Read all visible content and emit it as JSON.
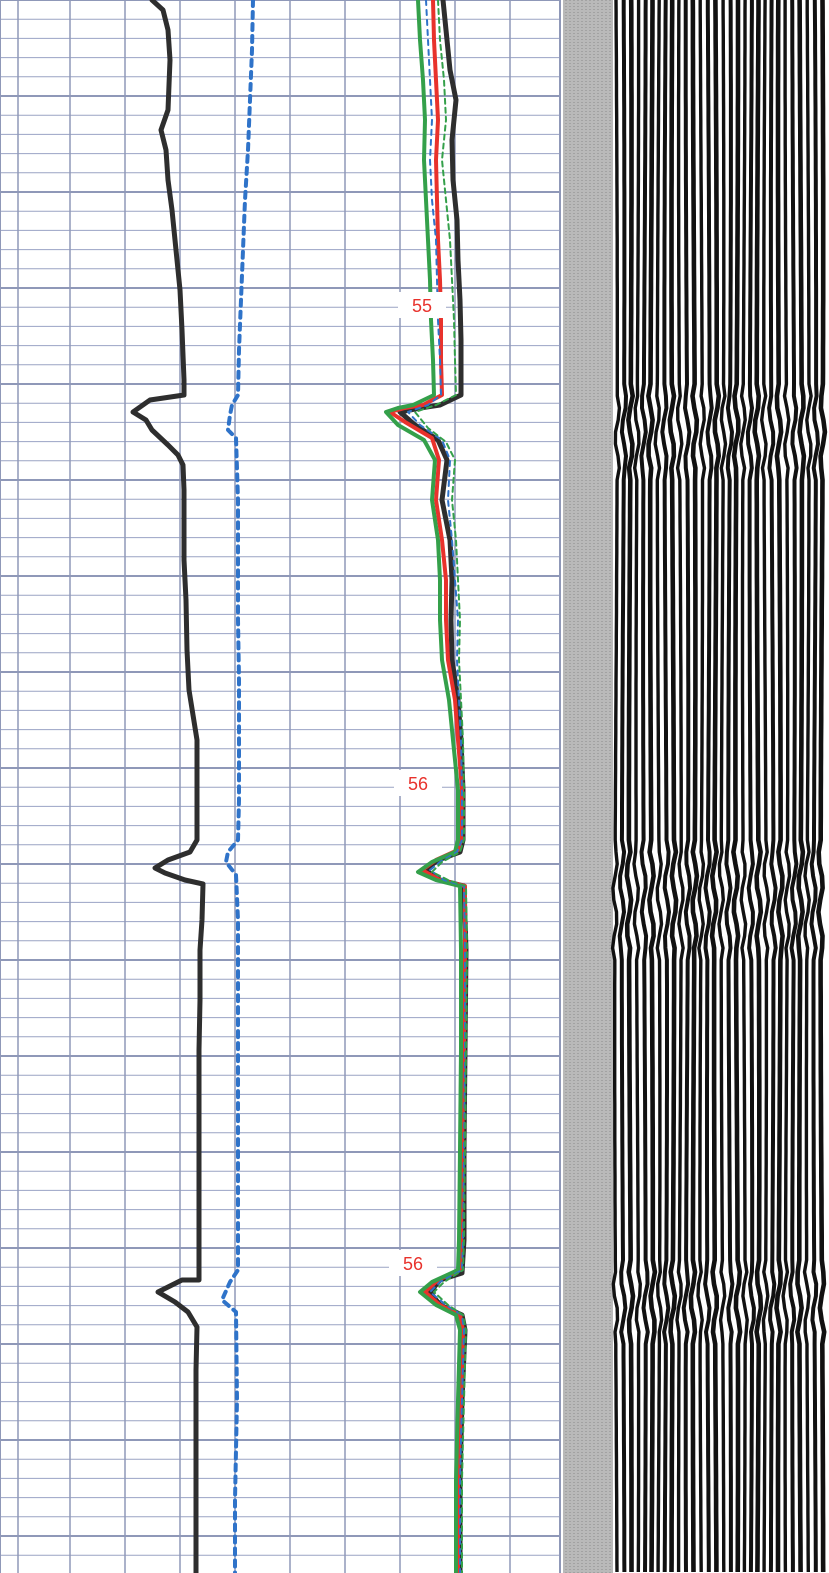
{
  "chart_data": {
    "type": "line",
    "depth_labels": [
      "55",
      "56",
      "56"
    ],
    "colors": {
      "grid_minor": "#9aa3c4",
      "grid_major": "#8f98b8",
      "black_track": "#2e2e2e",
      "blue_track": "#2f73c9",
      "red_track": "#e8322c",
      "green_track": "#34a04a",
      "label_text": "#e8322c",
      "separator": "#b9b9b9"
    },
    "series": [
      {
        "color_key": "black_track",
        "dash": "",
        "width": 5,
        "points": [
          [
            152,
            0
          ],
          [
            163,
            10
          ],
          [
            168,
            30
          ],
          [
            170,
            60
          ],
          [
            168,
            110
          ],
          [
            161,
            130
          ],
          [
            166,
            150
          ],
          [
            168,
            180
          ],
          [
            172,
            210
          ],
          [
            176,
            250
          ],
          [
            180,
            290
          ],
          [
            182,
            330
          ],
          [
            184,
            380
          ],
          [
            184,
            395
          ],
          [
            150,
            400
          ],
          [
            133,
            412
          ],
          [
            146,
            420
          ],
          [
            152,
            430
          ],
          [
            168,
            445
          ],
          [
            178,
            455
          ],
          [
            183,
            465
          ],
          [
            184,
            490
          ],
          [
            184,
            540
          ],
          [
            184,
            560
          ],
          [
            186,
            600
          ],
          [
            187,
            650
          ],
          [
            189,
            690
          ],
          [
            193,
            715
          ],
          [
            197,
            740
          ],
          [
            197,
            790
          ],
          [
            197,
            840
          ],
          [
            190,
            852
          ],
          [
            168,
            860
          ],
          [
            155,
            868
          ],
          [
            165,
            873
          ],
          [
            185,
            880
          ],
          [
            203,
            884
          ],
          [
            202,
            920
          ],
          [
            200,
            950
          ],
          [
            200,
            1000
          ],
          [
            199,
            1050
          ],
          [
            199,
            1100
          ],
          [
            199,
            1150
          ],
          [
            199,
            1200
          ],
          [
            199,
            1240
          ],
          [
            199,
            1280
          ],
          [
            182,
            1280
          ],
          [
            158,
            1292
          ],
          [
            175,
            1302
          ],
          [
            188,
            1312
          ],
          [
            197,
            1327
          ],
          [
            196,
            1370
          ],
          [
            196,
            1420
          ],
          [
            196,
            1470
          ],
          [
            196,
            1520
          ],
          [
            196,
            1573
          ]
        ]
      },
      {
        "color_key": "blue_track",
        "dash": "6,6",
        "width": 4,
        "points": [
          [
            253,
            0
          ],
          [
            252,
            50
          ],
          [
            250,
            100
          ],
          [
            248,
            150
          ],
          [
            245,
            200
          ],
          [
            243,
            250
          ],
          [
            241,
            300
          ],
          [
            239,
            350
          ],
          [
            238,
            395
          ],
          [
            232,
            405
          ],
          [
            230,
            415
          ],
          [
            228,
            430
          ],
          [
            236,
            438
          ],
          [
            238,
            500
          ],
          [
            238,
            560
          ],
          [
            238,
            620
          ],
          [
            239,
            680
          ],
          [
            239,
            740
          ],
          [
            239,
            800
          ],
          [
            238,
            840
          ],
          [
            228,
            852
          ],
          [
            226,
            862
          ],
          [
            236,
            875
          ],
          [
            238,
            920
          ],
          [
            238,
            1000
          ],
          [
            238,
            1100
          ],
          [
            238,
            1200
          ],
          [
            238,
            1270
          ],
          [
            230,
            1282
          ],
          [
            222,
            1300
          ],
          [
            236,
            1312
          ],
          [
            237,
            1400
          ],
          [
            235,
            1500
          ],
          [
            235,
            1573
          ]
        ]
      },
      {
        "color_key": "black_track",
        "dash": "",
        "width": 5,
        "points": [
          [
            443,
            0
          ],
          [
            446,
            30
          ],
          [
            450,
            70
          ],
          [
            456,
            100
          ],
          [
            452,
            140
          ],
          [
            453,
            180
          ],
          [
            457,
            220
          ],
          [
            458,
            260
          ],
          [
            460,
            300
          ],
          [
            461,
            340
          ],
          [
            461,
            395
          ],
          [
            440,
            405
          ],
          [
            420,
            408
          ],
          [
            400,
            412
          ],
          [
            415,
            425
          ],
          [
            438,
            440
          ],
          [
            447,
            460
          ],
          [
            442,
            500
          ],
          [
            450,
            540
          ],
          [
            452,
            580
          ],
          [
            451,
            620
          ],
          [
            452,
            660
          ],
          [
            458,
            700
          ],
          [
            461,
            740
          ],
          [
            463,
            790
          ],
          [
            463,
            840
          ],
          [
            460,
            852
          ],
          [
            438,
            860
          ],
          [
            425,
            870
          ],
          [
            440,
            880
          ],
          [
            464,
            886
          ],
          [
            466,
            950
          ],
          [
            465,
            1050
          ],
          [
            464,
            1150
          ],
          [
            464,
            1240
          ],
          [
            462,
            1273
          ],
          [
            440,
            1280
          ],
          [
            430,
            1292
          ],
          [
            440,
            1305
          ],
          [
            462,
            1315
          ],
          [
            465,
            1330
          ],
          [
            462,
            1400
          ],
          [
            460,
            1480
          ],
          [
            460,
            1573
          ]
        ]
      },
      {
        "color_key": "red_track",
        "dash": "",
        "width": 4,
        "points": [
          [
            433,
            0
          ],
          [
            434,
            40
          ],
          [
            436,
            80
          ],
          [
            438,
            120
          ],
          [
            436,
            160
          ],
          [
            437,
            200
          ],
          [
            438,
            240
          ],
          [
            440,
            280
          ],
          [
            441,
            320
          ],
          [
            441,
            360
          ],
          [
            442,
            395
          ],
          [
            423,
            405
          ],
          [
            405,
            408
          ],
          [
            390,
            412
          ],
          [
            405,
            422
          ],
          [
            432,
            438
          ],
          [
            439,
            460
          ],
          [
            436,
            500
          ],
          [
            442,
            540
          ],
          [
            446,
            580
          ],
          [
            446,
            620
          ],
          [
            448,
            660
          ],
          [
            455,
            700
          ],
          [
            458,
            740
          ],
          [
            462,
            790
          ],
          [
            461,
            840
          ],
          [
            458,
            850
          ],
          [
            436,
            860
          ],
          [
            422,
            870
          ],
          [
            440,
            880
          ],
          [
            465,
            886
          ],
          [
            465,
            950
          ],
          [
            464,
            1050
          ],
          [
            462,
            1150
          ],
          [
            461,
            1240
          ],
          [
            460,
            1270
          ],
          [
            438,
            1280
          ],
          [
            425,
            1292
          ],
          [
            440,
            1305
          ],
          [
            460,
            1315
          ],
          [
            463,
            1330
          ],
          [
            461,
            1400
          ],
          [
            458,
            1480
          ],
          [
            458,
            1573
          ]
        ]
      },
      {
        "color_key": "green_track",
        "dash": "",
        "width": 4,
        "points": [
          [
            418,
            0
          ],
          [
            420,
            40
          ],
          [
            423,
            80
          ],
          [
            425,
            120
          ],
          [
            424,
            160
          ],
          [
            426,
            200
          ],
          [
            428,
            240
          ],
          [
            430,
            280
          ],
          [
            431,
            320
          ],
          [
            433,
            360
          ],
          [
            434,
            395
          ],
          [
            413,
            405
          ],
          [
            398,
            408
          ],
          [
            386,
            412
          ],
          [
            398,
            425
          ],
          [
            424,
            440
          ],
          [
            435,
            460
          ],
          [
            432,
            500
          ],
          [
            438,
            540
          ],
          [
            440,
            580
          ],
          [
            440,
            620
          ],
          [
            442,
            660
          ],
          [
            449,
            700
          ],
          [
            453,
            740
          ],
          [
            458,
            790
          ],
          [
            458,
            840
          ],
          [
            455,
            852
          ],
          [
            432,
            862
          ],
          [
            418,
            872
          ],
          [
            436,
            880
          ],
          [
            460,
            886
          ],
          [
            461,
            950
          ],
          [
            461,
            1050
          ],
          [
            460,
            1150
          ],
          [
            459,
            1240
          ],
          [
            458,
            1270
          ],
          [
            432,
            1282
          ],
          [
            420,
            1292
          ],
          [
            436,
            1305
          ],
          [
            456,
            1315
          ],
          [
            460,
            1330
          ],
          [
            458,
            1400
          ],
          [
            456,
            1480
          ],
          [
            456,
            1573
          ]
        ]
      },
      {
        "color_key": "blue_track",
        "dash": "5,5",
        "width": 2,
        "points": [
          [
            426,
            0
          ],
          [
            428,
            40
          ],
          [
            430,
            80
          ],
          [
            432,
            120
          ],
          [
            430,
            160
          ],
          [
            432,
            200
          ],
          [
            436,
            240
          ],
          [
            437,
            280
          ],
          [
            438,
            320
          ],
          [
            440,
            360
          ],
          [
            441,
            395
          ],
          [
            428,
            405
          ],
          [
            408,
            412
          ],
          [
            420,
            425
          ],
          [
            442,
            440
          ],
          [
            450,
            460
          ],
          [
            448,
            500
          ],
          [
            452,
            540
          ],
          [
            455,
            580
          ],
          [
            458,
            620
          ],
          [
            457,
            660
          ],
          [
            459,
            700
          ],
          [
            461,
            740
          ],
          [
            462,
            790
          ],
          [
            462,
            840
          ],
          [
            457,
            852
          ],
          [
            440,
            862
          ],
          [
            430,
            870
          ],
          [
            444,
            880
          ],
          [
            464,
            886
          ],
          [
            465,
            950
          ],
          [
            465,
            1050
          ],
          [
            464,
            1150
          ],
          [
            463,
            1240
          ],
          [
            462,
            1270
          ],
          [
            440,
            1282
          ],
          [
            430,
            1292
          ],
          [
            446,
            1305
          ],
          [
            462,
            1315
          ],
          [
            464,
            1330
          ],
          [
            462,
            1400
          ],
          [
            460,
            1480
          ],
          [
            460,
            1573
          ]
        ]
      },
      {
        "color_key": "green_track",
        "dash": "5,4",
        "width": 2,
        "points": [
          [
            438,
            0
          ],
          [
            440,
            40
          ],
          [
            444,
            80
          ],
          [
            446,
            120
          ],
          [
            442,
            160
          ],
          [
            446,
            200
          ],
          [
            450,
            240
          ],
          [
            452,
            280
          ],
          [
            454,
            320
          ],
          [
            455,
            360
          ],
          [
            456,
            395
          ],
          [
            436,
            405
          ],
          [
            415,
            412
          ],
          [
            428,
            428
          ],
          [
            446,
            442
          ],
          [
            455,
            460
          ],
          [
            452,
            500
          ],
          [
            456,
            540
          ],
          [
            458,
            580
          ],
          [
            460,
            620
          ],
          [
            459,
            660
          ],
          [
            461,
            700
          ],
          [
            463,
            740
          ],
          [
            464,
            790
          ],
          [
            464,
            840
          ],
          [
            460,
            852
          ],
          [
            442,
            862
          ],
          [
            432,
            872
          ],
          [
            448,
            880
          ],
          [
            466,
            886
          ],
          [
            467,
            950
          ],
          [
            466,
            1050
          ],
          [
            465,
            1150
          ],
          [
            464,
            1240
          ],
          [
            463,
            1270
          ],
          [
            444,
            1282
          ],
          [
            434,
            1292
          ],
          [
            448,
            1305
          ],
          [
            463,
            1315
          ],
          [
            466,
            1330
          ],
          [
            464,
            1400
          ],
          [
            462,
            1480
          ],
          [
            462,
            1573
          ]
        ]
      }
    ],
    "labels": [
      {
        "text_index": 0,
        "x": 422,
        "y": 305
      },
      {
        "text_index": 1,
        "x": 418,
        "y": 783
      },
      {
        "text_index": 2,
        "x": 413,
        "y": 1263
      }
    ]
  }
}
